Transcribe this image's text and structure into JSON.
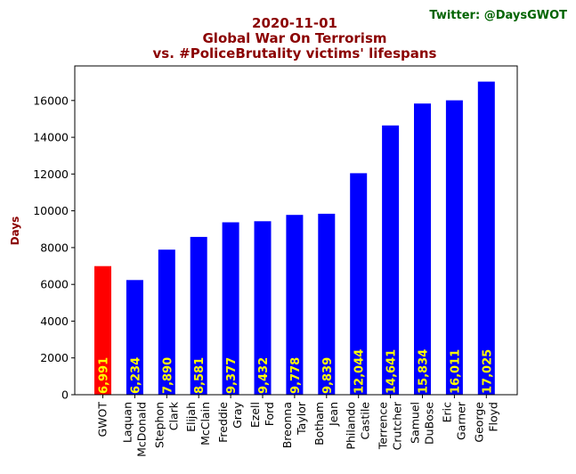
{
  "chart_data": {
    "type": "bar",
    "title_lines": [
      "2020-11-01",
      "Global War On Terrorism",
      "vs. #PoliceBrutality victims' lifespans"
    ],
    "credit": "Twitter: @DaysGWOT",
    "xlabel": "",
    "ylabel": "Days",
    "ylim": [
      0,
      17880
    ],
    "yticks": [
      0,
      2000,
      4000,
      6000,
      8000,
      10000,
      12000,
      14000,
      16000
    ],
    "categories": [
      [
        "GWOT"
      ],
      [
        "Laquan",
        "McDonald"
      ],
      [
        "Stephon",
        "Clark"
      ],
      [
        "Elijah",
        "McClain"
      ],
      [
        "Freddie",
        "Gray"
      ],
      [
        "Ezell",
        "Ford"
      ],
      [
        "Breonna",
        "Taylor"
      ],
      [
        "Botham",
        "Jean"
      ],
      [
        "Philando",
        "Castile"
      ],
      [
        "Terrence",
        "Crutcher"
      ],
      [
        "Samuel",
        "DuBose"
      ],
      [
        "Eric",
        "Garner"
      ],
      [
        "George",
        "Floyd"
      ]
    ],
    "values": [
      6991,
      6234,
      7890,
      8581,
      9377,
      9432,
      9778,
      9839,
      12044,
      14641,
      15834,
      16011,
      17025
    ],
    "value_labels": [
      "6,991",
      "6,234",
      "7,890",
      "8,581",
      "9,377",
      "9,432",
      "9,778",
      "9,839",
      "12,044",
      "14,641",
      "15,834",
      "16,011",
      "17,025"
    ],
    "colors": [
      "#ff0000",
      "#0000ff",
      "#0000ff",
      "#0000ff",
      "#0000ff",
      "#0000ff",
      "#0000ff",
      "#0000ff",
      "#0000ff",
      "#0000ff",
      "#0000ff",
      "#0000ff",
      "#0000ff"
    ],
    "label_color": "#ffff00",
    "grid": false
  }
}
